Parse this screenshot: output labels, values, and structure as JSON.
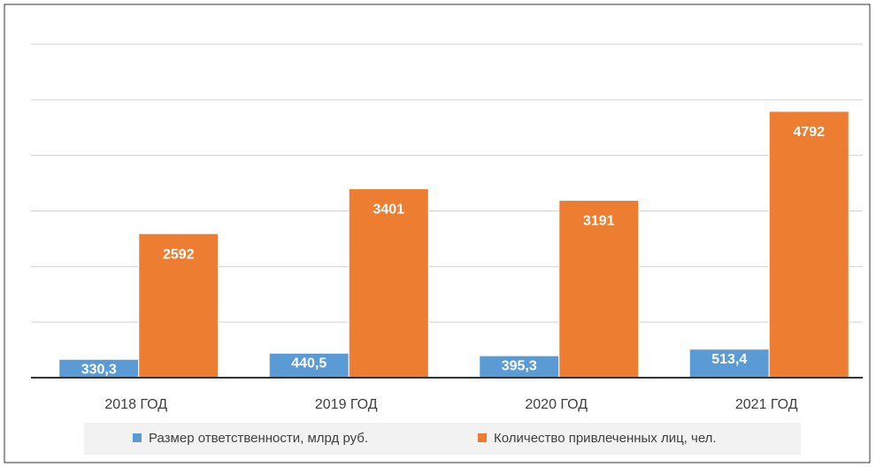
{
  "chart_data": {
    "type": "bar",
    "categories": [
      "2018 ГОД",
      "2019 ГОД",
      "2020 ГОД",
      "2021 ГОД"
    ],
    "series": [
      {
        "name": "Размер ответственности, млрд руб.",
        "color": "#5b9bd5",
        "values": [
          330.3,
          440.5,
          395.3,
          513.4
        ],
        "value_labels": [
          "330,3",
          "440,5",
          "395,3",
          "513,4"
        ]
      },
      {
        "name": "Количество привлеченных лиц, чел.",
        "color": "#ed7d31",
        "values": [
          2592,
          3401,
          3191,
          4792
        ]
      }
    ],
    "ylim": [
      0,
      6000
    ],
    "yticks": [
      0,
      1000,
      2000,
      3000,
      4000,
      5000,
      6000
    ],
    "ytick_labels": false,
    "grid": true,
    "legend": "bottom"
  }
}
